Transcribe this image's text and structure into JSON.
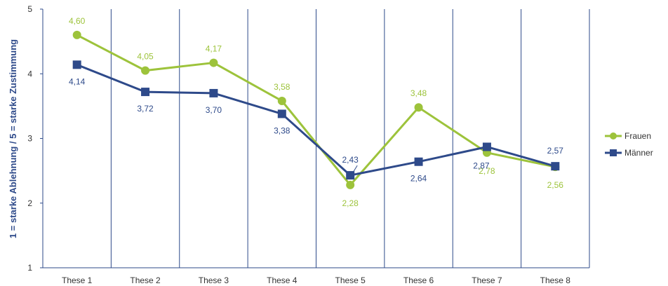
{
  "chart_data": {
    "type": "line",
    "ylabel": "1 = starke Ablehnung / 5 = starke Zustimmung",
    "ylim": [
      1,
      5
    ],
    "yticks": [
      "1",
      "2",
      "3",
      "4",
      "5"
    ],
    "categories": [
      "These 1",
      "These 2",
      "These 3",
      "These 4",
      "These 5",
      "These 6",
      "These 7",
      "These 8"
    ],
    "grid": "vertical",
    "legend_position": "right",
    "series": [
      {
        "name": "Frauen",
        "color": "#9dc33b",
        "marker": "circle",
        "values": [
          4.6,
          4.05,
          4.17,
          3.58,
          2.28,
          3.48,
          2.78,
          2.56
        ],
        "labels": [
          "4,60",
          "4,05",
          "4,17",
          "3,58",
          "2,28",
          "3,48",
          "2,78",
          "2,56"
        ]
      },
      {
        "name": "Männer",
        "color": "#2e4a8a",
        "marker": "square",
        "values": [
          4.14,
          3.72,
          3.7,
          3.38,
          2.43,
          2.64,
          2.87,
          2.57
        ],
        "labels": [
          "4,14",
          "3,72",
          "3,70",
          "3,38",
          "2,43",
          "2,64",
          "2,87",
          "2,57"
        ]
      }
    ]
  }
}
